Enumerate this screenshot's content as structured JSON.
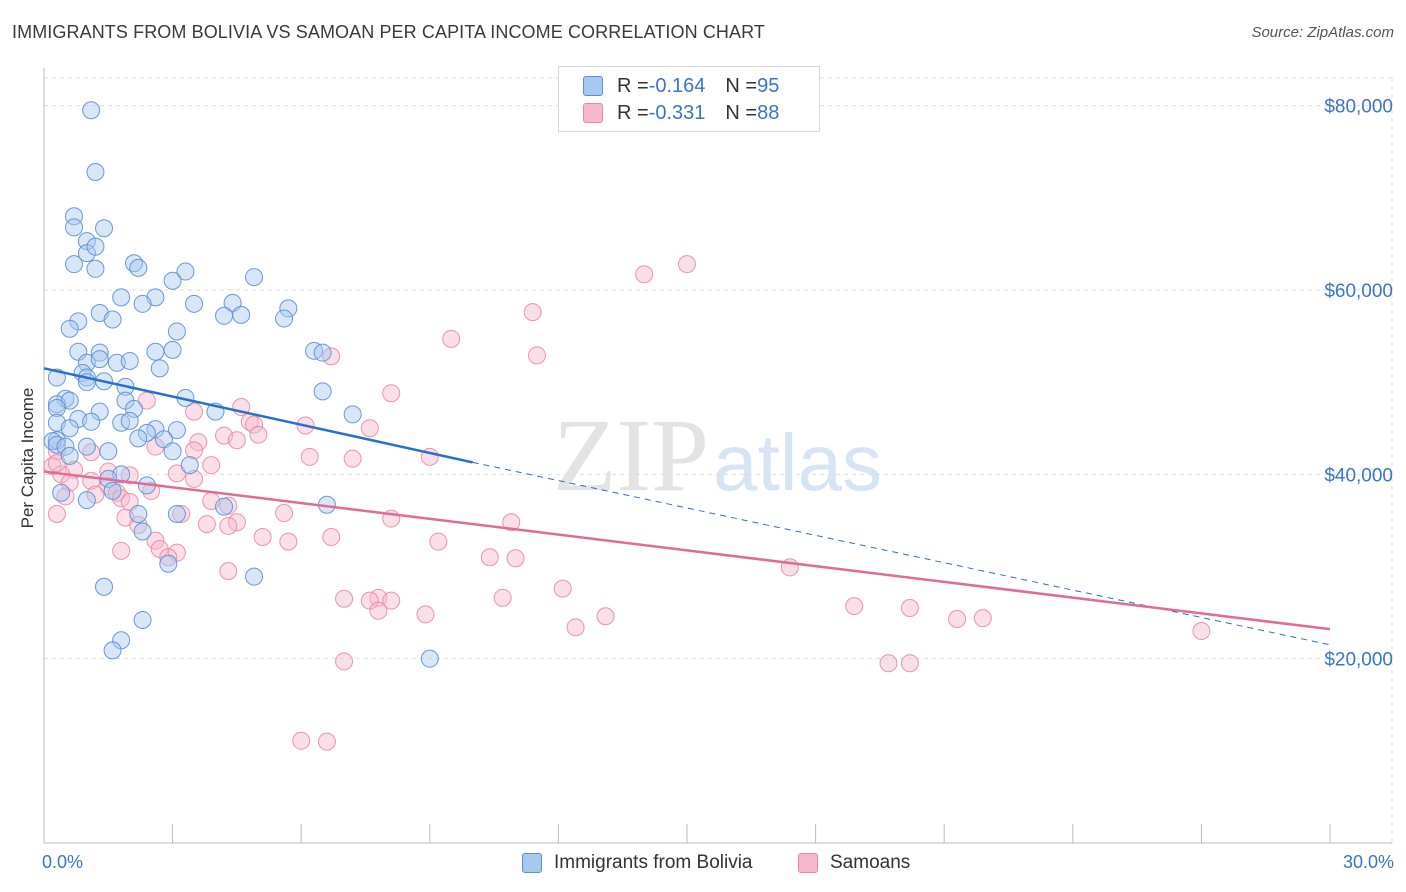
{
  "title": "IMMIGRANTS FROM BOLIVIA VS SAMOAN PER CAPITA INCOME CORRELATION CHART",
  "source": "Source: ZipAtlas.com",
  "watermark": {
    "zip": "ZIP",
    "atlas": "atlas"
  },
  "legend_top": {
    "rows": [
      {
        "r_label": "R = ",
        "r_value": "-0.164",
        "n_label": "N = ",
        "n_value": "95"
      },
      {
        "r_label": "R = ",
        "r_value": "-0.331",
        "n_label": "N = ",
        "n_value": "88"
      }
    ]
  },
  "colors": {
    "blue_fill": "#a9c8ef",
    "blue_stroke": "#5b8fd4",
    "blue_line": "#2a6fcf",
    "pink_fill": "#f6b9cb",
    "pink_stroke": "#e88aa6",
    "pink_line": "#e26b96",
    "axis_label": "#3b74c9",
    "grid": "#dddddd"
  },
  "chart_data": {
    "type": "scatter",
    "title": "IMMIGRANTS FROM BOLIVIA VS SAMOAN PER CAPITA INCOME CORRELATION CHART",
    "xlabel": "",
    "ylabel": "Per Capita Income",
    "xlim": [
      0,
      30
    ],
    "ylim": [
      0,
      83000
    ],
    "x_tick_labels": [
      "0.0%",
      "30.0%"
    ],
    "y_ticks": [
      20000,
      40000,
      60000,
      80000
    ],
    "y_tick_labels": [
      "$20,000",
      "$40,000",
      "$60,000",
      "$80,000"
    ],
    "grid": true,
    "legend_placement": "top-center and bottom",
    "series": [
      {
        "name": "Immigrants from Bolivia",
        "r": -0.164,
        "n": 95,
        "trend": {
          "x": [
            0,
            10
          ],
          "y": [
            51500,
            41300
          ],
          "dashed_to": [
            30,
            21500
          ]
        },
        "points": [
          [
            1.1,
            79500
          ],
          [
            1.2,
            72800
          ],
          [
            0.7,
            68000
          ],
          [
            0.7,
            66800
          ],
          [
            1.4,
            66700
          ],
          [
            1.0,
            65300
          ],
          [
            1.0,
            64000
          ],
          [
            1.2,
            64700
          ],
          [
            0.7,
            62800
          ],
          [
            1.2,
            62300
          ],
          [
            2.1,
            62900
          ],
          [
            2.2,
            62400
          ],
          [
            3.3,
            62000
          ],
          [
            4.9,
            61400
          ],
          [
            3.0,
            61000
          ],
          [
            2.6,
            59200
          ],
          [
            1.8,
            59200
          ],
          [
            2.3,
            58500
          ],
          [
            3.5,
            58500
          ],
          [
            4.4,
            58600
          ],
          [
            5.7,
            58000
          ],
          [
            1.3,
            57500
          ],
          [
            4.2,
            57200
          ],
          [
            4.6,
            57300
          ],
          [
            0.8,
            56600
          ],
          [
            1.6,
            56800
          ],
          [
            5.6,
            56900
          ],
          [
            0.6,
            55800
          ],
          [
            3.1,
            55500
          ],
          [
            0.8,
            53300
          ],
          [
            1.3,
            53200
          ],
          [
            3.0,
            53500
          ],
          [
            2.6,
            53300
          ],
          [
            6.3,
            53400
          ],
          [
            6.5,
            53200
          ],
          [
            1.0,
            52100
          ],
          [
            1.3,
            52500
          ],
          [
            1.7,
            52100
          ],
          [
            2.0,
            52300
          ],
          [
            2.7,
            51500
          ],
          [
            0.9,
            51000
          ],
          [
            1.0,
            50500
          ],
          [
            1.4,
            50100
          ],
          [
            0.3,
            50500
          ],
          [
            1.0,
            50000
          ],
          [
            1.9,
            49500
          ],
          [
            6.5,
            49000
          ],
          [
            0.5,
            48200
          ],
          [
            0.3,
            47600
          ],
          [
            0.6,
            48000
          ],
          [
            1.9,
            48000
          ],
          [
            3.3,
            48300
          ],
          [
            0.3,
            47200
          ],
          [
            1.3,
            46800
          ],
          [
            2.1,
            47100
          ],
          [
            4.0,
            46800
          ],
          [
            7.2,
            46500
          ],
          [
            0.3,
            45600
          ],
          [
            0.8,
            46000
          ],
          [
            1.1,
            45700
          ],
          [
            1.8,
            45600
          ],
          [
            2.0,
            45800
          ],
          [
            0.6,
            45000
          ],
          [
            2.6,
            44900
          ],
          [
            2.4,
            44500
          ],
          [
            3.1,
            44800
          ],
          [
            2.2,
            43900
          ],
          [
            2.8,
            43800
          ],
          [
            0.3,
            43700
          ],
          [
            1.0,
            43000
          ],
          [
            0.2,
            43600
          ],
          [
            0.3,
            43200
          ],
          [
            0.5,
            43000
          ],
          [
            3.0,
            42500
          ],
          [
            1.5,
            42500
          ],
          [
            0.6,
            42000
          ],
          [
            3.4,
            41000
          ],
          [
            1.8,
            40000
          ],
          [
            1.5,
            39500
          ],
          [
            2.4,
            38800
          ],
          [
            1.0,
            37200
          ],
          [
            4.2,
            36500
          ],
          [
            6.6,
            36700
          ],
          [
            2.2,
            35700
          ],
          [
            3.1,
            35700
          ],
          [
            2.3,
            33800
          ],
          [
            2.9,
            30300
          ],
          [
            4.9,
            28900
          ],
          [
            1.4,
            27800
          ],
          [
            2.3,
            24200
          ],
          [
            1.8,
            22000
          ],
          [
            1.6,
            20900
          ],
          [
            9.0,
            20000
          ],
          [
            0.4,
            38000
          ],
          [
            1.6,
            38200
          ]
        ]
      },
      {
        "name": "Samoans",
        "r": -0.331,
        "n": 88,
        "trend": {
          "x": [
            0,
            30
          ],
          "y": [
            40300,
            23200
          ]
        },
        "points": [
          [
            15.0,
            62800
          ],
          [
            14.0,
            61700
          ],
          [
            11.4,
            57600
          ],
          [
            9.5,
            54700
          ],
          [
            11.5,
            52900
          ],
          [
            6.7,
            52800
          ],
          [
            8.1,
            48800
          ],
          [
            2.4,
            48000
          ],
          [
            4.6,
            47300
          ],
          [
            3.5,
            46800
          ],
          [
            4.8,
            45700
          ],
          [
            4.9,
            45400
          ],
          [
            6.1,
            45300
          ],
          [
            7.6,
            45000
          ],
          [
            5.0,
            44300
          ],
          [
            4.2,
            44200
          ],
          [
            4.5,
            43700
          ],
          [
            3.6,
            43500
          ],
          [
            2.6,
            43000
          ],
          [
            3.5,
            42600
          ],
          [
            0.3,
            42500
          ],
          [
            1.1,
            42400
          ],
          [
            6.2,
            41900
          ],
          [
            9.0,
            41900
          ],
          [
            7.2,
            41700
          ],
          [
            3.9,
            41000
          ],
          [
            0.2,
            40900
          ],
          [
            0.7,
            40500
          ],
          [
            1.5,
            40300
          ],
          [
            3.1,
            40100
          ],
          [
            0.4,
            40000
          ],
          [
            2.0,
            39900
          ],
          [
            3.5,
            39500
          ],
          [
            1.1,
            39300
          ],
          [
            0.6,
            39100
          ],
          [
            1.5,
            38700
          ],
          [
            2.5,
            38200
          ],
          [
            1.7,
            38000
          ],
          [
            1.2,
            37800
          ],
          [
            0.5,
            37600
          ],
          [
            1.8,
            37400
          ],
          [
            3.9,
            37100
          ],
          [
            4.3,
            36600
          ],
          [
            5.6,
            35800
          ],
          [
            3.2,
            35700
          ],
          [
            0.3,
            35700
          ],
          [
            1.9,
            35300
          ],
          [
            8.1,
            35200
          ],
          [
            4.5,
            34800
          ],
          [
            3.8,
            34600
          ],
          [
            4.3,
            34400
          ],
          [
            2.2,
            34500
          ],
          [
            10.9,
            34800
          ],
          [
            2.6,
            32800
          ],
          [
            5.1,
            33200
          ],
          [
            6.7,
            33200
          ],
          [
            5.7,
            32700
          ],
          [
            9.2,
            32700
          ],
          [
            2.7,
            31900
          ],
          [
            3.1,
            31500
          ],
          [
            1.8,
            31700
          ],
          [
            2.9,
            31000
          ],
          [
            10.4,
            31000
          ],
          [
            11.0,
            30900
          ],
          [
            17.4,
            29900
          ],
          [
            4.3,
            29500
          ],
          [
            12.1,
            27600
          ],
          [
            7.8,
            26600
          ],
          [
            7.6,
            26300
          ],
          [
            7.0,
            26500
          ],
          [
            8.1,
            26300
          ],
          [
            10.7,
            26600
          ],
          [
            7.8,
            25200
          ],
          [
            18.9,
            25700
          ],
          [
            20.2,
            25500
          ],
          [
            8.9,
            24800
          ],
          [
            13.1,
            24600
          ],
          [
            21.3,
            24300
          ],
          [
            21.9,
            24400
          ],
          [
            12.4,
            23400
          ],
          [
            27.0,
            23000
          ],
          [
            7.0,
            19700
          ],
          [
            19.7,
            19500
          ],
          [
            20.2,
            19500
          ],
          [
            6.0,
            11100
          ],
          [
            6.6,
            11000
          ],
          [
            0.3,
            41200
          ],
          [
            2.0,
            37000
          ]
        ]
      }
    ]
  },
  "bottom_legend": {
    "items": [
      "Immigrants from Bolivia",
      "Samoans"
    ]
  }
}
